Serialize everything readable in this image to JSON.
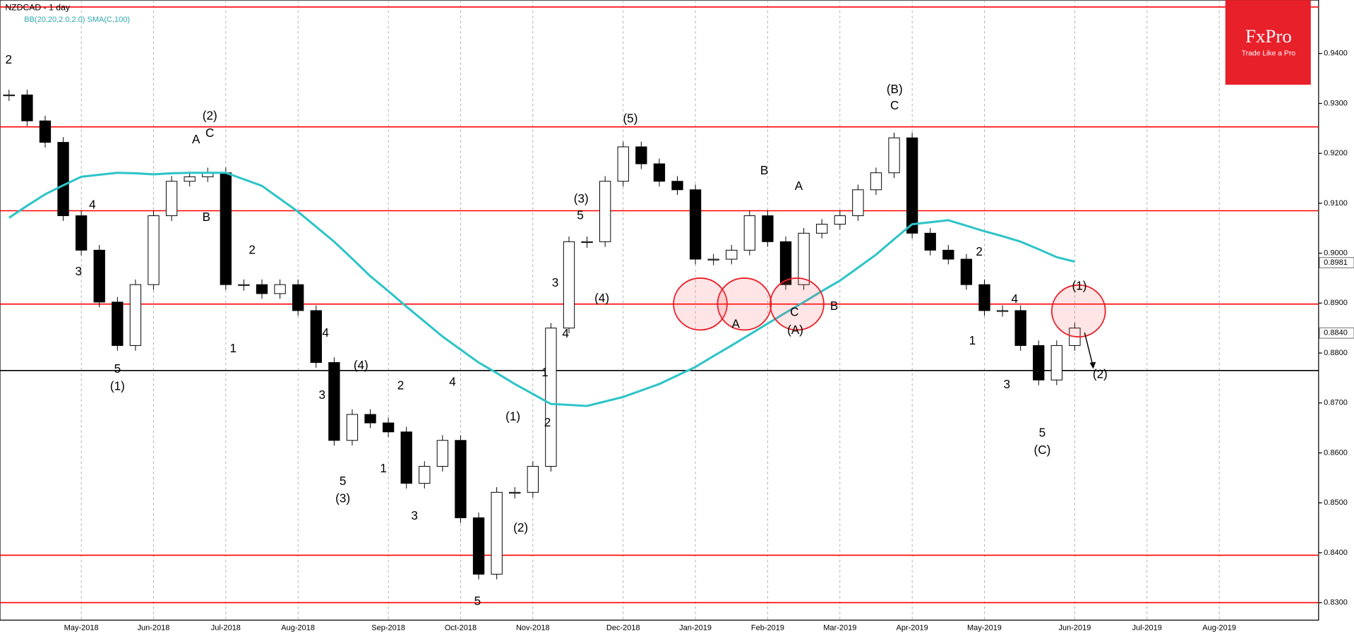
{
  "chart_data": {
    "type": "candlestick",
    "title": "NZDCAD - 1 day",
    "indicator": "BB(20,20,2.0,2.0) SMA(C,100)",
    "categories": [
      null,
      null,
      null,
      null,
      "May-2018",
      null,
      null,
      null,
      "Jun-2018",
      null,
      null,
      null,
      "Jul-2018",
      null,
      null,
      null,
      "Aug-2018",
      null,
      null,
      null,
      null,
      "Sep-2018",
      null,
      null,
      null,
      "Oct-2018",
      null,
      null,
      null,
      "Nov-2018",
      null,
      null,
      null,
      null,
      "Dec-2018",
      null,
      null,
      null,
      "Jan-2019",
      null,
      null,
      null,
      "Feb-2019",
      null,
      null,
      null,
      "Mar-2019",
      null,
      null,
      null,
      "Apr-2019",
      null,
      null,
      null,
      "May-2019",
      null,
      null,
      null,
      null,
      "Jun-2019",
      null,
      null,
      null,
      "Jul-2019",
      null,
      null,
      null,
      "Aug-2019",
      null,
      null,
      null,
      null,
      null
    ],
    "values": [
      0.9317,
      0.9265,
      0.9222,
      0.9075,
      0.9006,
      0.8902,
      0.8815,
      0.8937,
      0.9075,
      0.9144,
      0.9153,
      0.9161,
      0.8937,
      0.8937,
      0.8919,
      0.8937,
      0.8885,
      0.8781,
      0.8625,
      0.8677,
      0.866,
      0.8642,
      0.8539,
      0.8573,
      0.8625,
      0.847,
      0.8357,
      0.8521,
      0.8521,
      0.8573,
      0.885,
      0.9023,
      0.9023,
      0.9144,
      0.9213,
      0.9179,
      0.9144,
      0.9127,
      0.8988,
      0.8988,
      0.9006,
      0.9075,
      0.9023,
      0.8937,
      0.904,
      0.9058,
      0.9075,
      0.9127,
      0.9161,
      0.9231,
      0.904,
      0.9006,
      0.8988,
      0.8937,
      0.8885,
      0.8885,
      0.8815,
      0.8746,
      0.8815,
      0.885,
      null,
      null,
      null,
      null,
      null,
      null,
      null,
      null,
      null,
      null,
      null,
      null,
      null
    ],
    "up_color": "#ffffff",
    "down_color": "#000000",
    "sma_color": "#2ec4c8",
    "sma_values": [
      0.9071,
      0.9095,
      0.9118,
      0.9136,
      0.9153,
      0.9157,
      0.9161,
      0.916,
      0.9158,
      0.916,
      0.9161,
      0.9161,
      0.9161,
      0.9148,
      0.9135,
      0.9109,
      0.9083,
      0.9053,
      0.9023,
      0.8989,
      0.8954,
      0.8924,
      0.8893,
      0.8863,
      0.8833,
      0.8807,
      0.8781,
      0.876,
      0.8738,
      0.8718,
      0.8698,
      0.8696,
      0.8694,
      0.8703,
      0.8712,
      0.8725,
      0.8738,
      0.8755,
      0.8772,
      0.8794,
      0.8815,
      0.8837,
      0.8859,
      0.8881,
      0.8902,
      0.8924,
      0.8945,
      0.8971,
      0.8997,
      0.9028,
      0.9058,
      0.9062,
      0.9066,
      0.9055,
      0.9044,
      0.9034,
      0.9023,
      0.9008,
      0.8992,
      0.8983,
      null,
      null,
      null,
      null,
      null,
      null,
      null,
      null,
      null,
      null,
      null,
      null,
      null
    ],
    "levels": [
      {
        "value": 0.9493,
        "color": "#ff0000"
      },
      {
        "value": 0.9253,
        "color": "#ff0000"
      },
      {
        "value": 0.9085,
        "color": "#ff0000"
      },
      {
        "value": 0.8898,
        "color": "#ff0000"
      },
      {
        "value": 0.8395,
        "color": "#ff0000"
      },
      {
        "value": 0.83,
        "color": "#ff0000"
      },
      {
        "value": 0.8765,
        "color": "#000000"
      }
    ],
    "ylim": [
      0.8265,
      0.9507
    ],
    "yticks": [
      {
        "value": 0.94,
        "label": "0.9400"
      },
      {
        "value": 0.93,
        "label": "0.9300"
      },
      {
        "value": 0.92,
        "label": "0.9200"
      },
      {
        "value": 0.91,
        "label": "0.9100"
      },
      {
        "value": 0.9,
        "label": "0.9000"
      },
      {
        "value": 0.89,
        "label": "0.8900"
      },
      {
        "value": 0.88,
        "label": "0.8800"
      },
      {
        "value": 0.87,
        "label": "0.8700"
      },
      {
        "value": 0.86,
        "label": "0.8600"
      },
      {
        "value": 0.85,
        "label": "0.8500"
      },
      {
        "value": 0.84,
        "label": "0.8400"
      },
      {
        "value": 0.83,
        "label": "0.8300"
      }
    ],
    "price_tags": [
      {
        "value": 0.8981,
        "label": "0.8981"
      },
      {
        "value": 0.884,
        "label": "0.8840"
      }
    ],
    "annotations": [
      "2",
      "4",
      "3",
      "5",
      "(1)",
      "A",
      "C",
      "(2)",
      "B",
      "1",
      "2",
      "4",
      "3",
      "(4)",
      "5",
      "(3)",
      "1",
      "2",
      "3",
      "4",
      "(1)",
      "2",
      "(2)",
      "5",
      "3",
      "4",
      "1",
      "(3)",
      "5",
      "(4)",
      "(5)",
      "B",
      "A",
      "A",
      "C",
      "(A)",
      "B",
      "C",
      "(B)",
      "2",
      "4",
      "1",
      "3",
      "5",
      "(C)",
      "(1)",
      "(2)"
    ]
  },
  "logo": {
    "title": "FxPro",
    "tagline": "Trade Like a Pro"
  }
}
